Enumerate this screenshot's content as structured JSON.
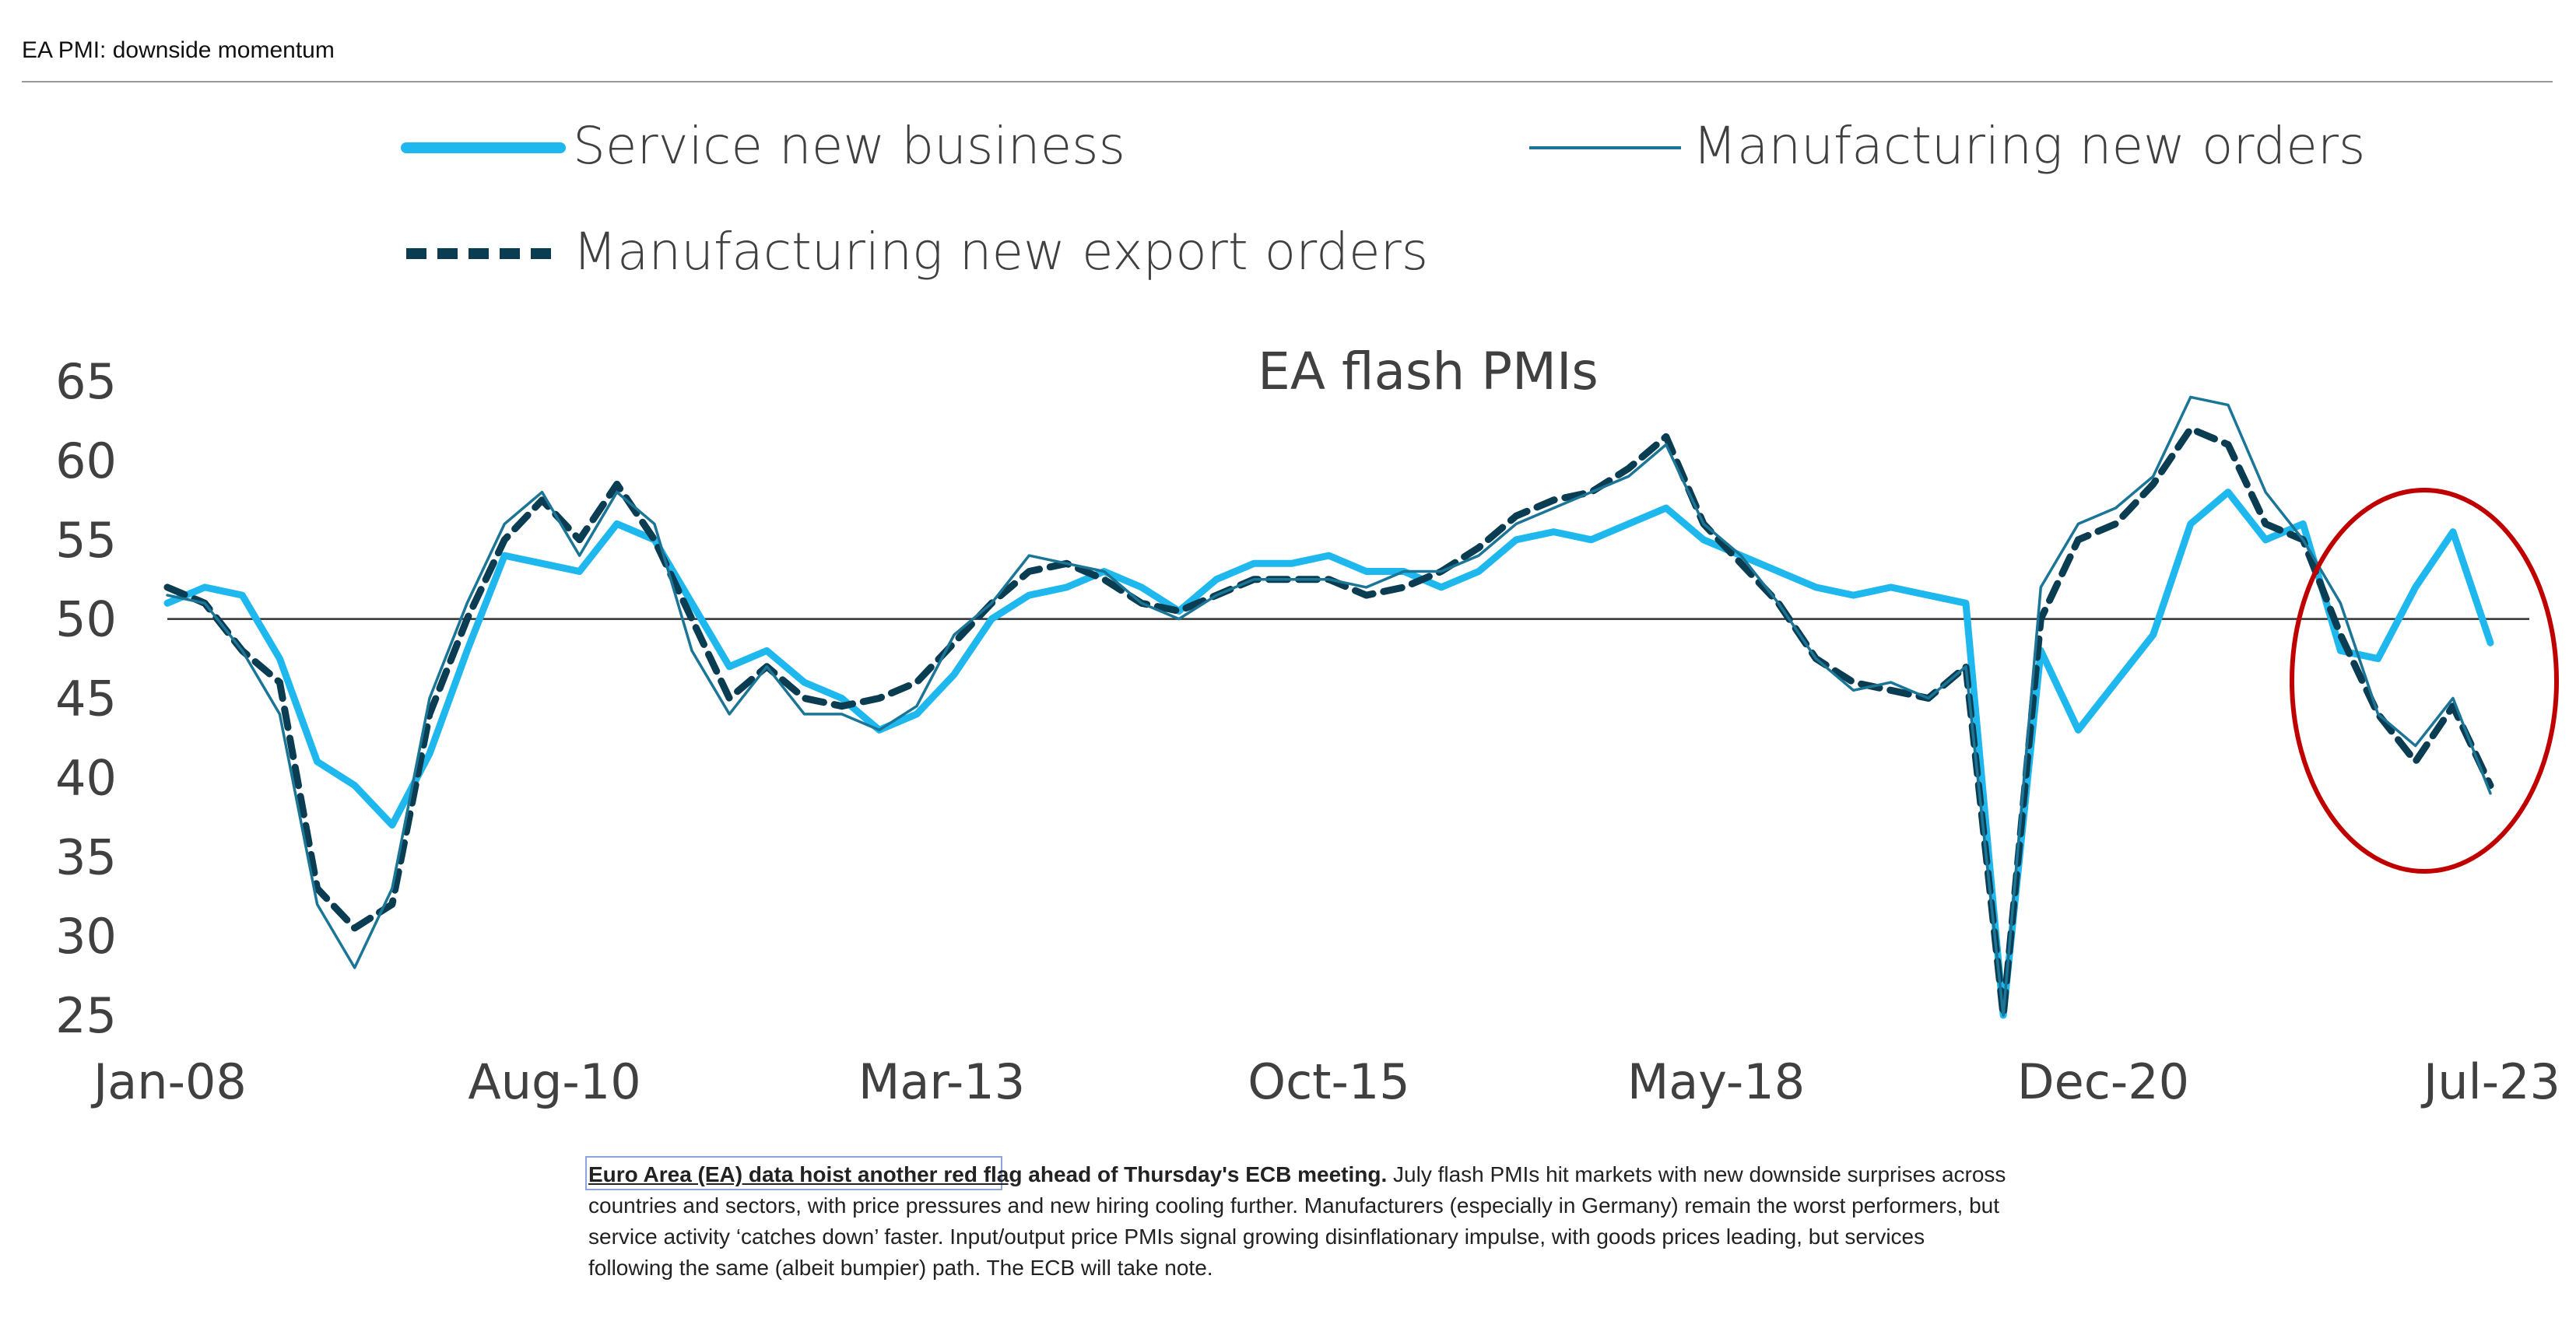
{
  "header": {
    "title": "EA PMI: downside momentum"
  },
  "legend": [
    {
      "label": "Service new business",
      "color": "#1fb8ee",
      "style": "thick"
    },
    {
      "label": "Manufacturing new orders",
      "color": "#1a7597",
      "style": "thin"
    },
    {
      "label": "Manufacturing new export orders",
      "color": "#0b3d52",
      "style": "dashed"
    }
  ],
  "caption": {
    "lead_link": "Euro Area (EA) data hoist another red flag",
    "lead_rest": " ahead of Thursday's ECB meeting.",
    "body": " July flash PMIs hit markets with new downside surprises across countries and sectors, with price pressures and new hiring cooling further. Manufacturers (especially in Germany) remain the worst performers, but service activity ‘catches down’ faster. Input/output price PMIs signal growing disinflationary impulse, with goods prices leading, but services following the same (albeit bumpier) path. The ECB will take note."
  },
  "chart_data": {
    "type": "line",
    "title": "EA flash PMIs",
    "xlabel": "",
    "ylabel": "",
    "ylim": [
      25,
      65
    ],
    "yticks": [
      25,
      30,
      35,
      40,
      45,
      50,
      55,
      60,
      65
    ],
    "xticks": [
      "Jan-08",
      "Aug-10",
      "Mar-13",
      "Oct-15",
      "May-18",
      "Dec-20",
      "Jul-23"
    ],
    "xrange": [
      "2008-01",
      "2023-07"
    ],
    "reference_line": 50,
    "annotation": "red circle around 2022-2023 decline",
    "x": [
      "2008-01",
      "2008-04",
      "2008-07",
      "2008-10",
      "2009-01",
      "2009-04",
      "2009-07",
      "2009-10",
      "2010-01",
      "2010-04",
      "2010-07",
      "2010-10",
      "2011-01",
      "2011-04",
      "2011-07",
      "2011-10",
      "2012-01",
      "2012-04",
      "2012-07",
      "2012-10",
      "2013-01",
      "2013-04",
      "2013-07",
      "2013-10",
      "2014-01",
      "2014-04",
      "2014-07",
      "2014-10",
      "2015-01",
      "2015-04",
      "2015-07",
      "2015-10",
      "2016-01",
      "2016-04",
      "2016-07",
      "2016-10",
      "2017-01",
      "2017-04",
      "2017-07",
      "2017-10",
      "2018-01",
      "2018-04",
      "2018-07",
      "2018-10",
      "2019-01",
      "2019-04",
      "2019-07",
      "2019-10",
      "2020-01",
      "2020-04",
      "2020-07",
      "2020-10",
      "2021-01",
      "2021-04",
      "2021-07",
      "2021-10",
      "2022-01",
      "2022-04",
      "2022-07",
      "2022-10",
      "2023-01",
      "2023-04",
      "2023-07"
    ],
    "series": [
      {
        "name": "Service new business",
        "color": "#1fb8ee",
        "width": 9,
        "dash": "",
        "values": [
          51,
          52,
          51.5,
          47.5,
          41,
          39.5,
          37,
          41.5,
          48,
          54,
          53.5,
          53,
          56,
          55,
          51,
          47,
          48,
          46,
          45,
          43,
          44,
          46.5,
          50,
          51.5,
          52,
          53,
          52,
          50.5,
          52.5,
          53.5,
          53.5,
          54,
          53,
          53,
          52,
          53,
          55,
          55.5,
          55,
          56,
          57,
          55,
          54,
          53,
          52,
          51.5,
          52,
          51.5,
          51,
          25,
          48,
          43,
          46,
          49,
          56,
          58,
          55,
          56,
          48,
          47.5,
          52,
          55.5,
          48.5
        ]
      },
      {
        "name": "Manufacturing new orders",
        "color": "#1a7597",
        "width": 3.5,
        "dash": "",
        "values": [
          51.5,
          51,
          48,
          44,
          32,
          28,
          33,
          45,
          51,
          56,
          58,
          54,
          58,
          56,
          48,
          44,
          47,
          44,
          44,
          43,
          44.5,
          49,
          51,
          54,
          53.5,
          53,
          51,
          50,
          51.5,
          52.5,
          52.5,
          52.5,
          52,
          53,
          53,
          54,
          56,
          57,
          58,
          59,
          61,
          56,
          54,
          51,
          47.5,
          45.5,
          46,
          45,
          47,
          25,
          52,
          56,
          57,
          59,
          64,
          63.5,
          58,
          55,
          51,
          44,
          42,
          45,
          39
        ]
      },
      {
        "name": "Manufacturing new export orders",
        "color": "#0b3d52",
        "width": 9,
        "dash": "24,14",
        "values": [
          52,
          51,
          48,
          46,
          33,
          30.5,
          32,
          44,
          50,
          55,
          57.5,
          55,
          58.5,
          55,
          50,
          45,
          47,
          45,
          44.5,
          45,
          46,
          48.5,
          51,
          53,
          53.5,
          52.5,
          51,
          50.5,
          51.5,
          52.5,
          52.5,
          52.5,
          51.5,
          52,
          53,
          54.5,
          56.5,
          57.5,
          58,
          59.5,
          61.5,
          56,
          53.5,
          51,
          47.5,
          46,
          45.5,
          45,
          47,
          25,
          50,
          55,
          56,
          58.5,
          62,
          61,
          56,
          55,
          49,
          44,
          41,
          44.5,
          39.5
        ]
      }
    ]
  }
}
